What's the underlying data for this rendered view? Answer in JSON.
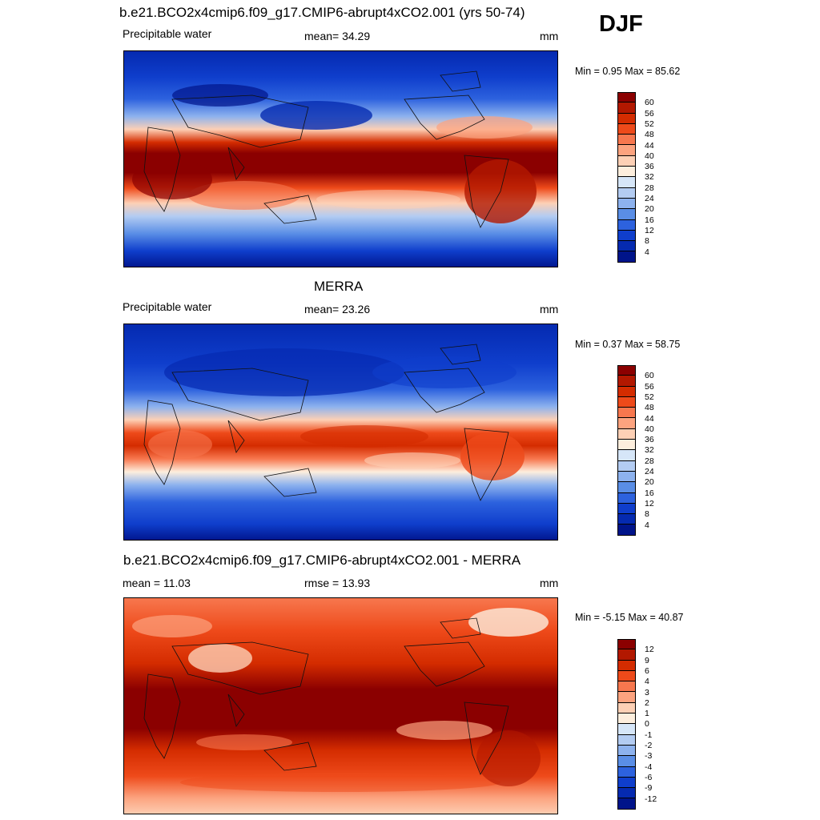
{
  "header": {
    "season": "DJF"
  },
  "panels": [
    {
      "title": "b.e21.BCO2x4cmip6.f09_g17.CMIP6-abrupt4xCO2.001 (yrs 50-74)",
      "left_label": "Precipitable water",
      "center_label": "mean=  34.29",
      "right_label": "mm",
      "minmax": "Min =   0.95 Max =  85.62",
      "colorbar_labels": [
        "60",
        "56",
        "52",
        "48",
        "44",
        "40",
        "36",
        "32",
        "28",
        "24",
        "20",
        "16",
        "12",
        "8",
        "4"
      ],
      "colors": [
        "#8b0000",
        "#b21800",
        "#d42c00",
        "#ee4a1a",
        "#f7774e",
        "#fca37f",
        "#fdd0b5",
        "#fdeedd",
        "#d6e6f8",
        "#b3ccf2",
        "#8db2ee",
        "#5a8ee6",
        "#2d62de",
        "#0f3ecc",
        "#052ab0",
        "#00148a"
      ]
    },
    {
      "title": "MERRA",
      "left_label": "Precipitable water",
      "center_label": "mean=  23.26",
      "right_label": "mm",
      "minmax": "Min =   0.37 Max =  58.75",
      "colorbar_labels": [
        "60",
        "56",
        "52",
        "48",
        "44",
        "40",
        "36",
        "32",
        "28",
        "24",
        "20",
        "16",
        "12",
        "8",
        "4"
      ],
      "colors": [
        "#8b0000",
        "#b21800",
        "#d42c00",
        "#ee4a1a",
        "#f7774e",
        "#fca37f",
        "#fdd0b5",
        "#fdeedd",
        "#d6e6f8",
        "#b3ccf2",
        "#8db2ee",
        "#5a8ee6",
        "#2d62de",
        "#0f3ecc",
        "#052ab0",
        "#00148a"
      ]
    },
    {
      "title": "b.e21.BCO2x4cmip6.f09_g17.CMIP6-abrupt4xCO2.001 - MERRA",
      "left_label": "mean =  11.03",
      "center_label": "rmse =  13.93",
      "right_label": "mm",
      "minmax": "Min =  -5.15 Max =  40.87",
      "colorbar_labels": [
        "12",
        "9",
        "6",
        "4",
        "3",
        "2",
        "1",
        "0",
        "-1",
        "-2",
        "-3",
        "-4",
        "-6",
        "-9",
        "-12"
      ],
      "colors": [
        "#8b0000",
        "#b21800",
        "#d42c00",
        "#ee4a1a",
        "#f7774e",
        "#fca37f",
        "#fdd0b5",
        "#fdeedd",
        "#d6e6f8",
        "#b3ccf2",
        "#8db2ee",
        "#5a8ee6",
        "#2d62de",
        "#0f3ecc",
        "#052ab0",
        "#00148a"
      ]
    }
  ]
}
